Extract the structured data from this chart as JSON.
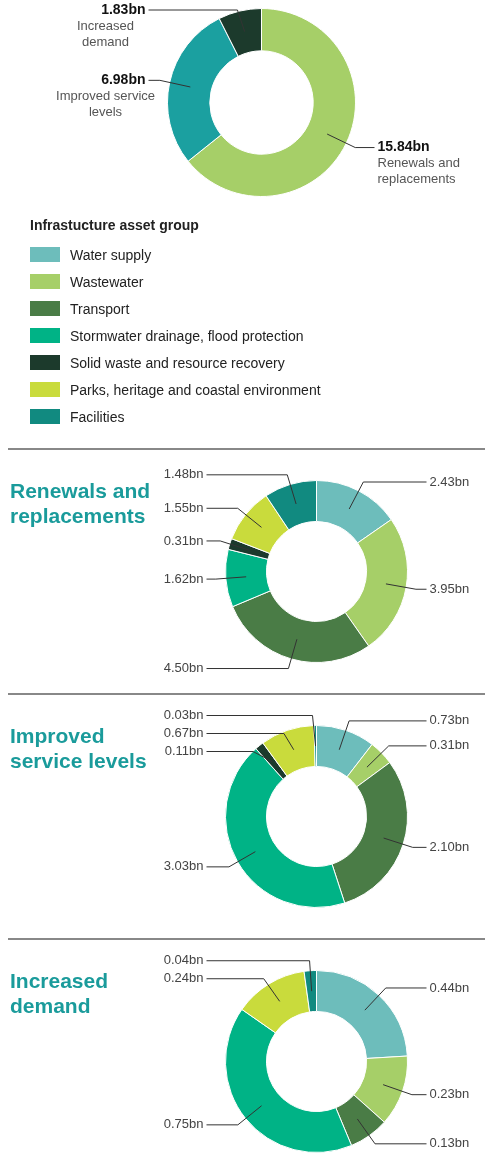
{
  "chart_data": [
    {
      "type": "donut",
      "categories": [
        "Renewals and replacements",
        "Improved service levels",
        "Increased demand"
      ],
      "values": [
        15.84,
        6.98,
        1.83
      ],
      "colors": [
        "#a6cf68",
        "#1ba0a0",
        "#1c3a2c"
      ],
      "value_labels": [
        "15.84bn",
        "6.98bn",
        "1.83bn"
      ]
    },
    {
      "type": "donut",
      "title": "Renewals and replacements",
      "legend_title": "Infrastucture asset group",
      "legend": "top",
      "categories": [
        "Water supply",
        "Wastewater",
        "Transport",
        "Stormwater drainage, flood protection",
        "Solid waste and resource recovery",
        "Parks, heritage and coastal environment",
        "Facilities"
      ],
      "values": [
        2.43,
        3.95,
        4.5,
        1.62,
        0.31,
        1.55,
        1.48
      ],
      "colors": [
        "#6dbdbb",
        "#a6cf68",
        "#4a7c46",
        "#00b386",
        "#1c3a2c",
        "#c9db3c",
        "#118a80"
      ],
      "value_labels": [
        "2.43bn",
        "3.95bn",
        "4.50bn",
        "1.62bn",
        "0.31bn",
        "1.55bn",
        "1.48bn"
      ]
    },
    {
      "type": "donut",
      "title": "Improved service levels",
      "categories": [
        null,
        null,
        null,
        null,
        null,
        null,
        null
      ],
      "values": [
        0.73,
        0.31,
        2.1,
        3.03,
        0.11,
        0.67,
        0.03
      ],
      "colors": [
        "#6dbdbb",
        "#a6cf68",
        "#4a7c46",
        "#00b386",
        "#1c3a2c",
        "#c9db3c",
        "#118a80"
      ],
      "value_labels": [
        "0.73bn",
        "0.31bn",
        "2.10bn",
        "3.03bn",
        "0.11bn",
        "0.67bn",
        "0.03bn"
      ]
    },
    {
      "type": "donut",
      "title": "Increased demand",
      "categories": [
        null,
        null,
        null,
        null,
        null,
        null,
        null
      ],
      "values": [
        0.44,
        0.23,
        0.13,
        0.75,
        null,
        0.24,
        0.04
      ],
      "colors": [
        "#6dbdbb",
        "#a6cf68",
        "#4a7c46",
        "#00b386",
        "#1c3a2c",
        "#c9db3c",
        "#118a80"
      ],
      "value_labels": [
        "0.44bn",
        "0.23bn",
        "0.13bn",
        "0.75bn",
        null,
        "0.24bn",
        "0.04bn"
      ]
    }
  ]
}
